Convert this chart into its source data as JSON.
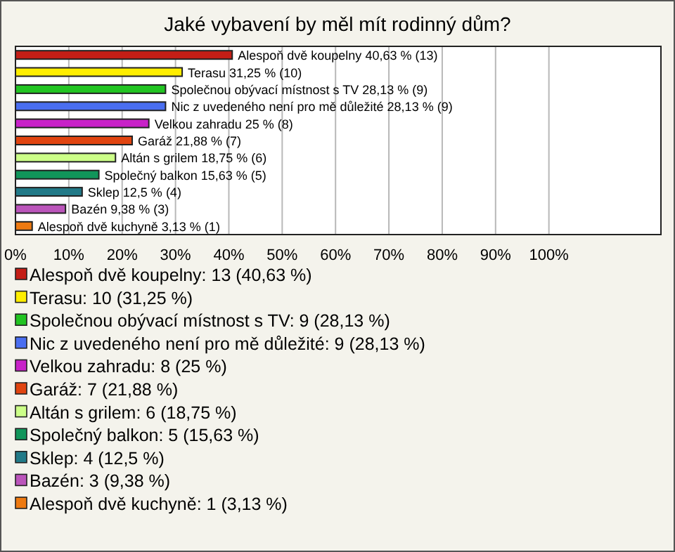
{
  "chart_data": {
    "type": "bar",
    "orientation": "horizontal",
    "stacked": true,
    "title": "Jaké vybavení by měl mít rodinný dům?",
    "categories": [
      null,
      null,
      null,
      null,
      null,
      null,
      null,
      null,
      null,
      null,
      null
    ],
    "series": [
      {
        "name": "Alespoň dvě koupelny: 13 (40,63 %)",
        "color": "#c41e16",
        "values": [
          40.63,
          null,
          null,
          null,
          null,
          null,
          null,
          null,
          null,
          null,
          null
        ],
        "value_labels": [
          "Alespoň dvě koupelny 40,63 % (13)",
          null,
          null,
          null,
          null,
          null,
          null,
          null,
          null,
          null,
          null
        ]
      },
      {
        "name": "Terasu: 10 (31,25 %)",
        "color": "#ffee00",
        "values": [
          null,
          31.25,
          null,
          null,
          null,
          null,
          null,
          null,
          null,
          null,
          null
        ],
        "value_labels": [
          null,
          "Terasu 31,25 % (10)",
          null,
          null,
          null,
          null,
          null,
          null,
          null,
          null,
          null
        ]
      },
      {
        "name": "Společnou obývací místnost s TV: 9 (28,13 %)",
        "color": "#22c422",
        "values": [
          null,
          null,
          28.13,
          null,
          null,
          null,
          null,
          null,
          null,
          null,
          null
        ],
        "value_labels": [
          null,
          null,
          "Společnou obývací místnost s TV 28,13 % (9)",
          null,
          null,
          null,
          null,
          null,
          null,
          null,
          null
        ]
      },
      {
        "name": "Nic z uvedeného není pro mě důležité: 9 (28,13 %)",
        "color": "#4a6ef0",
        "values": [
          null,
          null,
          null,
          28.13,
          null,
          null,
          null,
          null,
          null,
          null,
          null
        ],
        "value_labels": [
          null,
          null,
          null,
          "Nic z uvedeného není pro mě důležité 28,13 % (9)",
          null,
          null,
          null,
          null,
          null,
          null,
          null
        ]
      },
      {
        "name": "Velkou zahradu: 8 (25 %)",
        "color": "#c822c8",
        "values": [
          null,
          null,
          null,
          null,
          25,
          null,
          null,
          null,
          null,
          null,
          null
        ],
        "value_labels": [
          null,
          null,
          null,
          null,
          "Velkou zahradu 25 % (8)",
          null,
          null,
          null,
          null,
          null,
          null
        ]
      },
      {
        "name": "Garáž: 7 (21,88 %)",
        "color": "#e04410",
        "values": [
          null,
          null,
          null,
          null,
          null,
          21.88,
          null,
          null,
          null,
          null,
          null
        ],
        "value_labels": [
          null,
          null,
          null,
          null,
          null,
          "Garáž 21,88 % (7)",
          null,
          null,
          null,
          null,
          null
        ]
      },
      {
        "name": "Altán s grilem: 6 (18,75 %)",
        "color": "#ccff88",
        "values": [
          null,
          null,
          null,
          null,
          null,
          null,
          18.75,
          null,
          null,
          null,
          null
        ],
        "value_labels": [
          null,
          null,
          null,
          null,
          null,
          null,
          "Altán s grilem 18,75 % (6)",
          null,
          null,
          null,
          null
        ]
      },
      {
        "name": "Společný balkon: 5 (15,63 %)",
        "color": "#11955a",
        "values": [
          null,
          null,
          null,
          null,
          null,
          null,
          null,
          15.63,
          null,
          null,
          null
        ],
        "value_labels": [
          null,
          null,
          null,
          null,
          null,
          null,
          null,
          "Společný balkon 15,63 % (5)",
          null,
          null,
          null
        ]
      },
      {
        "name": "Sklep: 4 (12,5 %)",
        "color": "#227a88",
        "values": [
          null,
          null,
          null,
          null,
          null,
          null,
          null,
          null,
          12.5,
          null,
          null
        ],
        "value_labels": [
          null,
          null,
          null,
          null,
          null,
          null,
          null,
          null,
          "Sklep 12,5 % (4)",
          null,
          null
        ]
      },
      {
        "name": "Bazén: 3 (9,38 %)",
        "color": "#bb55bb",
        "values": [
          null,
          null,
          null,
          null,
          null,
          null,
          null,
          null,
          null,
          9.38,
          null
        ],
        "value_labels": [
          null,
          null,
          null,
          null,
          null,
          null,
          null,
          null,
          null,
          "Bazén 9,38 % (3)",
          null
        ]
      },
      {
        "name": "Alespoň dvě kuchyně: 1 (3,13 %)",
        "color": "#ee7a11",
        "values": [
          null,
          null,
          null,
          null,
          null,
          null,
          null,
          null,
          null,
          null,
          3.13
        ],
        "value_labels": [
          null,
          null,
          null,
          null,
          null,
          null,
          null,
          null,
          null,
          null,
          "Alespoň dvě kuchyně 3,13 % (1)"
        ]
      }
    ],
    "xlim": [
      0,
      121
    ],
    "xticks": [
      {
        "value": 0,
        "label": "0%"
      },
      {
        "value": 10,
        "label": "10%"
      },
      {
        "value": 20,
        "label": "20%"
      },
      {
        "value": 30,
        "label": "30%"
      },
      {
        "value": 40,
        "label": "40%"
      },
      {
        "value": 50,
        "label": "50%"
      },
      {
        "value": 60,
        "label": "60%"
      },
      {
        "value": 70,
        "label": "70%"
      },
      {
        "value": 80,
        "label": "80%"
      },
      {
        "value": 90,
        "label": "90%"
      },
      {
        "value": 100,
        "label": "100%"
      }
    ],
    "grid": "x",
    "legend": "bottom",
    "tick_labels": "x"
  }
}
